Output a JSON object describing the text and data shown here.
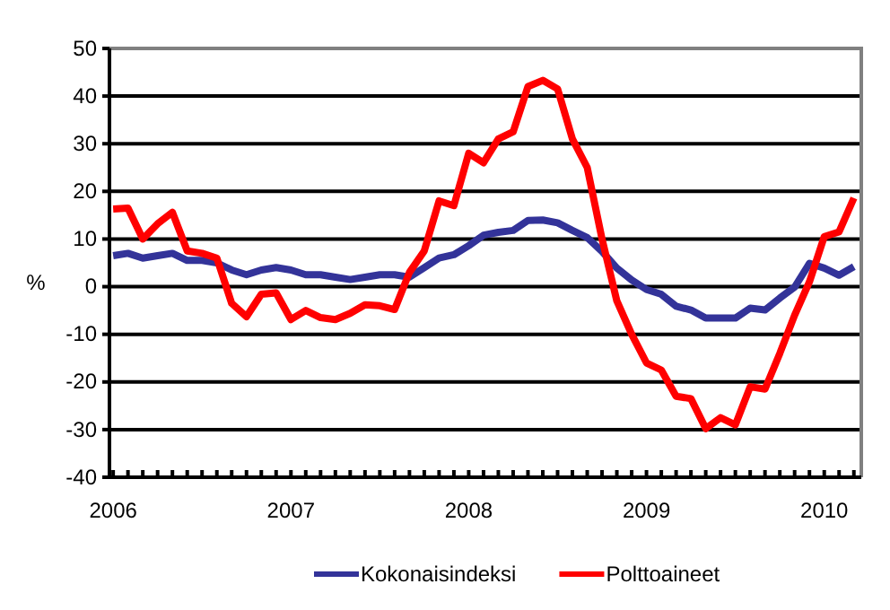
{
  "chart_data": {
    "type": "line",
    "ylabel": "%",
    "categories": [
      "2006",
      null,
      null,
      null,
      null,
      null,
      null,
      null,
      null,
      null,
      null,
      null,
      "2007",
      null,
      null,
      null,
      null,
      null,
      null,
      null,
      null,
      null,
      null,
      null,
      "2008",
      null,
      null,
      null,
      null,
      null,
      null,
      null,
      null,
      null,
      null,
      null,
      "2009",
      null,
      null,
      null,
      null,
      null,
      null,
      null,
      null,
      null,
      null,
      null,
      "2010",
      null,
      null
    ],
    "series": [
      {
        "name": "Kokonaisindeksi",
        "color": "#333399",
        "values": [
          6.5,
          7,
          6,
          6.5,
          7,
          5.5,
          5.5,
          5,
          3.5,
          2.5,
          3.5,
          4,
          3.5,
          2.5,
          2.5,
          2,
          1.5,
          2,
          2.5,
          2.5,
          2,
          4,
          6,
          6.7,
          8.6,
          10.8,
          11.4,
          11.8,
          13.9,
          14,
          13.4,
          11.8,
          10.3,
          7.4,
          3.9,
          1.4,
          -0.6,
          -1.6,
          -4.1,
          -4.9,
          -6.6,
          -6.6,
          -6.6,
          -4.5,
          -4.9,
          -2.4,
          -0.1,
          4.9,
          3.9,
          2.4,
          4.2
        ]
      },
      {
        "name": "Polttoaineet",
        "color": "#ff0000",
        "values": [
          16.3,
          16.5,
          10,
          13.2,
          15.6,
          7.5,
          7,
          6,
          -3.5,
          -6.3,
          -1.6,
          -1.3,
          -6.9,
          -5,
          -6.5,
          -6.9,
          -5.6,
          -3.8,
          -4,
          -4.8,
          3,
          7.5,
          18,
          17,
          28,
          26,
          31,
          32.5,
          42,
          43.3,
          41.5,
          31,
          25,
          10,
          -3,
          -10,
          -16,
          -17.5,
          -23,
          -23.5,
          -29.8,
          -27.5,
          -29,
          -21,
          -21.5,
          -14,
          -6,
          1,
          10.5,
          11.5,
          18.6
        ]
      }
    ],
    "ylim": [
      -40,
      50
    ],
    "yticks": [
      -40,
      -30,
      -20,
      -10,
      0,
      10,
      20,
      30,
      40,
      50
    ],
    "grid": "y",
    "legend": "bottom",
    "line_style": "solid",
    "marker": "none"
  }
}
